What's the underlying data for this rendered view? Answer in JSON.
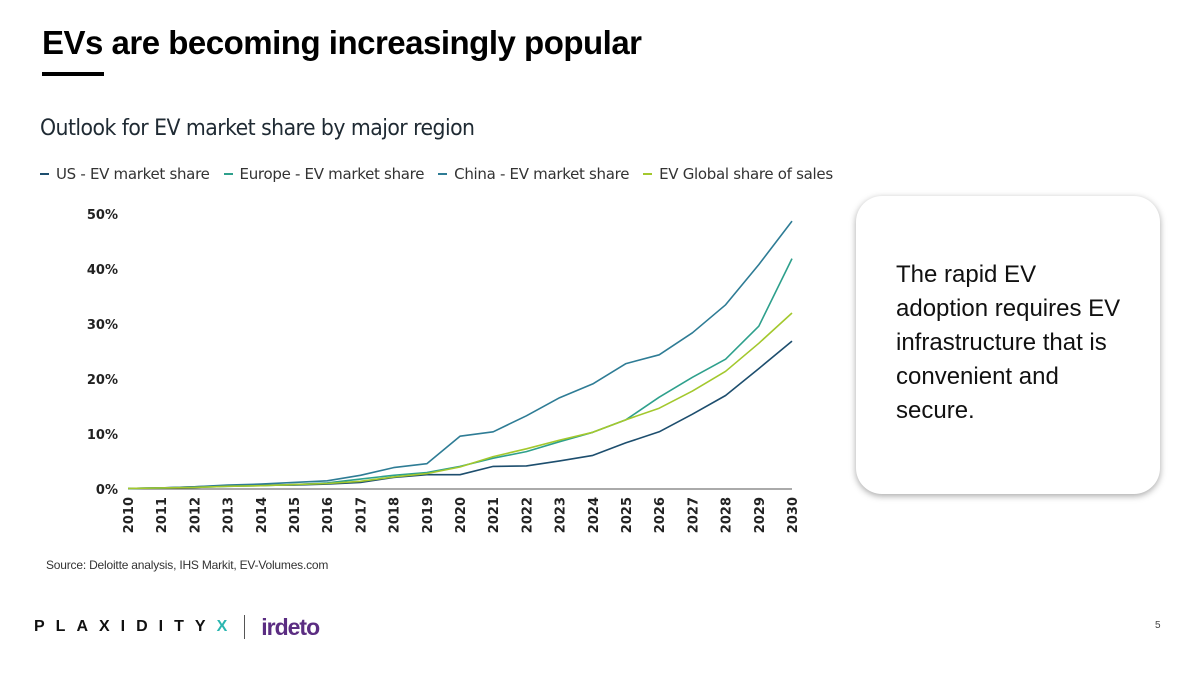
{
  "slide": {
    "title": "EVs are becoming increasingly popular",
    "source": "Source: Deloitte analysis, IHS Markit, EV-Volumes.com",
    "callout": "The rapid EV adoption requires EV infrastructure that is convenient and secure.",
    "page_number": "5"
  },
  "brand": {
    "plaxidity_main": "PLAXIDITY",
    "plaxidity_accent": "X",
    "irdeto": "irdeto"
  },
  "colors": {
    "us": "#1d4e6e",
    "europe": "#2ea08c",
    "china": "#2e7c95",
    "global": "#a3c82d",
    "brand_accent": "#2bb6b0",
    "brand_irdeto": "#5b2d82"
  },
  "chart_data": {
    "type": "line",
    "title": "Outlook for EV market share by major region",
    "legend_position": "top",
    "grid": false,
    "x": [
      "2010",
      "2011",
      "2012",
      "2013",
      "2014",
      "2015",
      "2016",
      "2017",
      "2018",
      "2019",
      "2020",
      "2021",
      "2022",
      "2023",
      "2024",
      "2025",
      "2026",
      "2027",
      "2028",
      "2029",
      "2030"
    ],
    "ylim": [
      0,
      50
    ],
    "yticks": [
      {
        "value": 0,
        "label": "0%"
      },
      {
        "value": 10,
        "label": "10%"
      },
      {
        "value": 20,
        "label": "20%"
      },
      {
        "value": 30,
        "label": "30%"
      },
      {
        "value": 40,
        "label": "40%"
      },
      {
        "value": 50,
        "label": "50%"
      }
    ],
    "series": [
      {
        "name": "US - EV market share",
        "color_key": "us",
        "values": [
          0.1,
          0.2,
          0.4,
          0.6,
          0.7,
          0.7,
          0.9,
          1.2,
          2.1,
          2.6,
          2.6,
          4.1,
          4.2,
          5.1,
          6.1,
          8.4,
          10.4,
          13.6,
          17.0,
          21.9,
          26.9
        ]
      },
      {
        "name": "Europe - EV market share",
        "color_key": "europe",
        "values": [
          0.1,
          0.2,
          0.3,
          0.5,
          0.6,
          0.8,
          1.1,
          1.8,
          2.5,
          3.0,
          4.1,
          5.6,
          6.8,
          8.6,
          10.3,
          12.6,
          16.7,
          20.3,
          23.6,
          29.6,
          41.9
        ]
      },
      {
        "name": "China - EV market share",
        "color_key": "china",
        "values": [
          0.1,
          0.2,
          0.4,
          0.7,
          0.9,
          1.2,
          1.5,
          2.5,
          3.9,
          4.6,
          9.6,
          10.4,
          13.3,
          16.6,
          19.1,
          22.8,
          24.4,
          28.4,
          33.5,
          40.8,
          48.7
        ]
      },
      {
        "name": "EV Global share of sales",
        "color_key": "global",
        "values": [
          0.1,
          0.2,
          0.3,
          0.5,
          0.6,
          0.8,
          1.0,
          1.4,
          2.2,
          2.8,
          4.0,
          5.9,
          7.3,
          8.9,
          10.3,
          12.6,
          14.7,
          17.8,
          21.4,
          26.5,
          32.0
        ]
      }
    ]
  }
}
